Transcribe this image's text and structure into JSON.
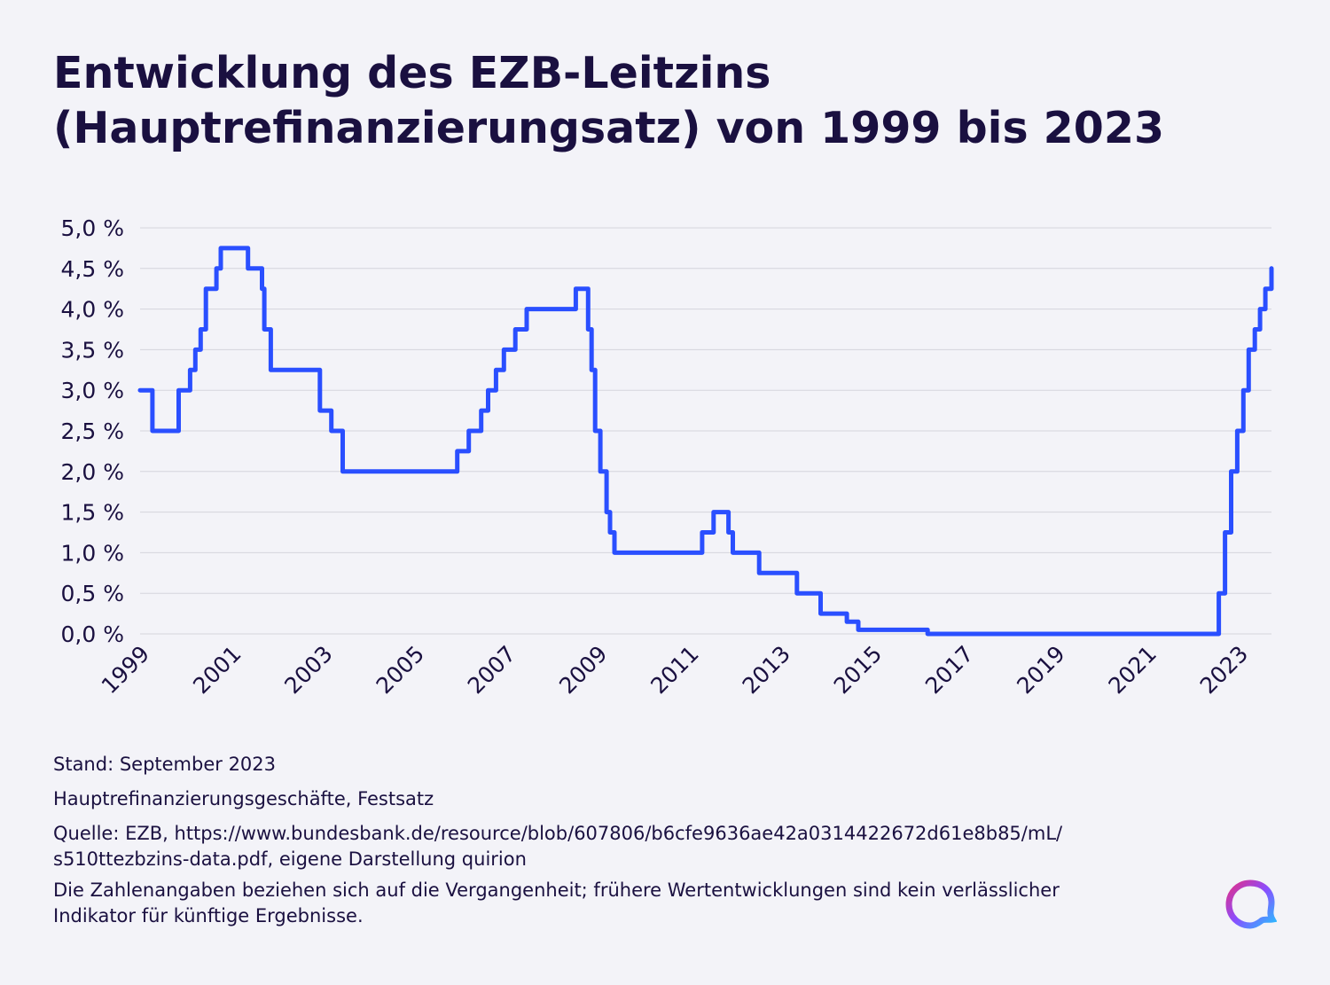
{
  "title": {
    "line1": "Entwicklung des EZB-Leitzins",
    "line2": "(Hauptrefinanzierungsatz) von 1999 bis 2023"
  },
  "chart_data": {
    "type": "line",
    "step": true,
    "series": [
      {
        "color": "#2a4fff",
        "points": [
          [
            "1999-01-01",
            3.0
          ],
          [
            "1999-04-09",
            2.5
          ],
          [
            "1999-11-05",
            3.0
          ],
          [
            "2000-02-04",
            3.25
          ],
          [
            "2000-03-17",
            3.5
          ],
          [
            "2000-04-28",
            3.75
          ],
          [
            "2000-06-09",
            4.25
          ],
          [
            "2000-09-01",
            4.5
          ],
          [
            "2000-10-06",
            4.75
          ],
          [
            "2001-05-11",
            4.5
          ],
          [
            "2001-08-31",
            4.25
          ],
          [
            "2001-09-18",
            3.75
          ],
          [
            "2001-11-09",
            3.25
          ],
          [
            "2002-12-06",
            2.75
          ],
          [
            "2003-03-07",
            2.5
          ],
          [
            "2003-06-06",
            2.0
          ],
          [
            "2005-12-06",
            2.25
          ],
          [
            "2006-03-08",
            2.5
          ],
          [
            "2006-06-15",
            2.75
          ],
          [
            "2006-08-09",
            3.0
          ],
          [
            "2006-10-11",
            3.25
          ],
          [
            "2006-12-13",
            3.5
          ],
          [
            "2007-03-14",
            3.75
          ],
          [
            "2007-06-13",
            4.0
          ],
          [
            "2008-07-09",
            4.25
          ],
          [
            "2008-10-15",
            3.75
          ],
          [
            "2008-11-12",
            3.25
          ],
          [
            "2008-12-10",
            2.5
          ],
          [
            "2009-01-21",
            2.0
          ],
          [
            "2009-03-11",
            1.5
          ],
          [
            "2009-04-08",
            1.25
          ],
          [
            "2009-05-13",
            1.0
          ],
          [
            "2011-04-13",
            1.25
          ],
          [
            "2011-07-13",
            1.5
          ],
          [
            "2011-11-09",
            1.25
          ],
          [
            "2011-12-14",
            1.0
          ],
          [
            "2012-07-11",
            0.75
          ],
          [
            "2013-05-08",
            0.5
          ],
          [
            "2013-11-13",
            0.25
          ],
          [
            "2014-06-11",
            0.15
          ],
          [
            "2014-09-10",
            0.05
          ],
          [
            "2016-03-16",
            0.0
          ],
          [
            "2022-07-27",
            0.5
          ],
          [
            "2022-09-14",
            1.25
          ],
          [
            "2022-11-02",
            2.0
          ],
          [
            "2022-12-21",
            2.5
          ],
          [
            "2023-02-08",
            3.0
          ],
          [
            "2023-03-22",
            3.5
          ],
          [
            "2023-05-10",
            3.75
          ],
          [
            "2023-06-21",
            4.0
          ],
          [
            "2023-08-02",
            4.25
          ],
          [
            "2023-09-20",
            4.5
          ]
        ]
      }
    ],
    "x_ticks": [
      "1999",
      "2001",
      "2003",
      "2005",
      "2007",
      "2009",
      "2011",
      "2013",
      "2015",
      "2017",
      "2019",
      "2021",
      "2023"
    ],
    "y_ticks": [
      0,
      0.5,
      1.0,
      1.5,
      2.0,
      2.5,
      3.0,
      3.5,
      4.0,
      4.5,
      5.0
    ],
    "y_tick_labels": [
      "0,0 %",
      "0,5 %",
      "1,0 %",
      "1,5 %",
      "2,0 %",
      "2,5 %",
      "3,0 %",
      "3,5 %",
      "4,0 %",
      "4,5 %",
      "5,0 %"
    ],
    "ylim": [
      0,
      5.0
    ],
    "xlim": [
      "1999-01-01",
      "2023-09-20"
    ],
    "grid": "horizontal"
  },
  "notes": {
    "stand": "Stand: September 2023",
    "geschaeft": "Hauptrefinanzierungsgeschäfte, Festsatz",
    "quelle_line1": "Quelle: EZB, https://www.bundesbank.de/resource/blob/607806/b6cfe9636ae42a0314422672d61e8b85/mL/",
    "quelle_line2": "s510ttezbzins-data.pdf, eigene Darstellung quirion",
    "disclaimer_line1": "Die Zahlenangaben beziehen sich auf die Vergangenheit; frühere Wertentwicklungen sind kein verlässlicher",
    "disclaimer_line2": "Indikator für künftige Ergebnisse."
  },
  "colors": {
    "background": "#f3f3f8",
    "line": "#2a4fff",
    "text": "#1a1040",
    "grid": "#d4d4dc"
  }
}
